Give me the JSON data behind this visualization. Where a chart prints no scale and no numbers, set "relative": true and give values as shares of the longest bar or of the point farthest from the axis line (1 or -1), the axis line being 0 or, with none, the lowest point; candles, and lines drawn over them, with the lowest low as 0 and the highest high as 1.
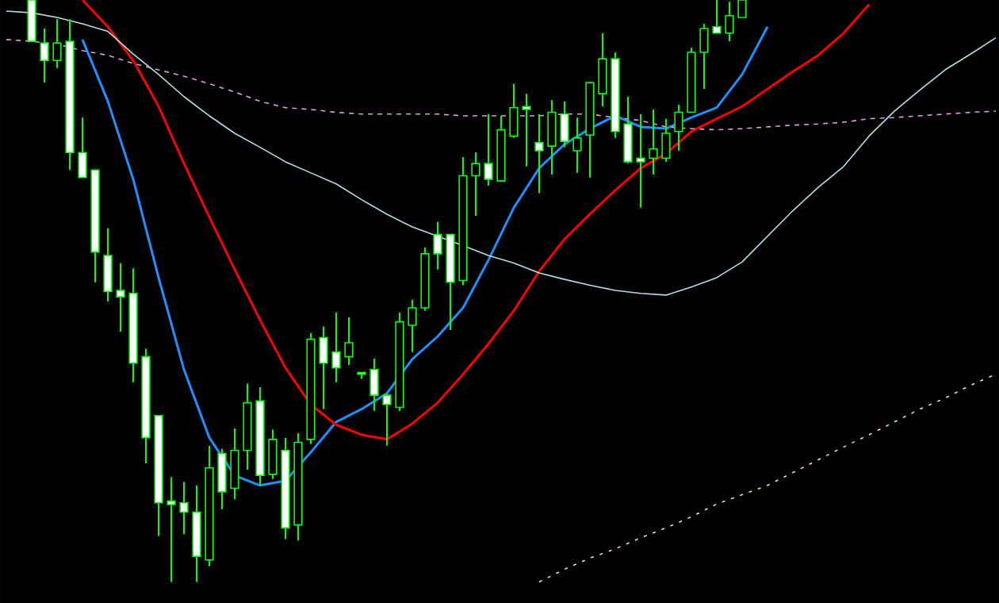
{
  "chart_data": [
    {
      "type": "candlestick",
      "relative": true,
      "color": "#00ff00",
      "categories": [
        null,
        null,
        null,
        null,
        null,
        null,
        null,
        null,
        null,
        null,
        null,
        null,
        null,
        null,
        null,
        null,
        null,
        null,
        null,
        null,
        null,
        null,
        null,
        null,
        null,
        null,
        null,
        null,
        null,
        null,
        null,
        null,
        null,
        null,
        null,
        null,
        null,
        null,
        null,
        null,
        null,
        null,
        null,
        null,
        null,
        null,
        null,
        null,
        null,
        null,
        null,
        null,
        null,
        null,
        null,
        null,
        null
      ],
      "ohlc": [
        [
          1.0,
          1.0,
          0.929,
          0.929
        ],
        [
          0.926,
          0.951,
          0.858,
          0.896
        ],
        [
          0.896,
          0.967,
          0.883,
          0.926
        ],
        [
          0.929,
          0.967,
          0.708,
          0.738
        ],
        [
          0.738,
          0.798,
          0.695,
          0.695
        ],
        [
          0.708,
          0.708,
          0.515,
          0.567
        ],
        [
          0.561,
          0.608,
          0.482,
          0.499
        ],
        [
          0.501,
          0.548,
          0.43,
          0.49
        ],
        [
          0.496,
          0.539,
          0.343,
          0.376
        ],
        [
          0.387,
          0.401,
          0.204,
          0.248
        ],
        [
          0.286,
          0.286,
          0.079,
          0.136
        ],
        [
          0.139,
          0.18,
          0.0,
          0.133
        ],
        [
          0.136,
          0.172,
          0.082,
          0.12
        ],
        [
          0.12,
          0.166,
          0.0,
          0.044
        ],
        [
          0.038,
          0.234,
          0.027,
          0.196
        ],
        [
          0.221,
          0.229,
          0.125,
          0.155
        ],
        [
          0.161,
          0.264,
          0.142,
          0.226
        ],
        [
          0.226,
          0.341,
          0.193,
          0.308
        ],
        [
          0.311,
          0.335,
          0.166,
          0.183
        ],
        [
          0.185,
          0.262,
          0.177,
          0.245
        ],
        [
          0.226,
          0.248,
          0.074,
          0.093
        ],
        [
          0.098,
          0.256,
          0.071,
          0.24
        ],
        [
          0.245,
          0.428,
          0.237,
          0.417
        ],
        [
          0.42,
          0.439,
          0.297,
          0.376
        ],
        [
          0.395,
          0.463,
          0.343,
          0.368
        ],
        [
          0.387,
          0.455,
          0.373,
          0.411
        ],
        [
          0.36,
          0.36,
          0.349,
          0.357
        ],
        [
          0.365,
          0.384,
          0.294,
          0.321
        ],
        [
          0.321,
          0.324,
          0.234,
          0.305
        ],
        [
          0.3,
          0.463,
          0.294,
          0.447
        ],
        [
          0.441,
          0.485,
          0.395,
          0.471
        ],
        [
          0.471,
          0.575,
          0.466,
          0.564
        ],
        [
          0.597,
          0.619,
          0.537,
          0.564
        ],
        [
          0.597,
          0.597,
          0.433,
          0.515
        ],
        [
          0.518,
          0.73,
          0.51,
          0.698
        ],
        [
          0.698,
          0.738,
          0.629,
          0.719
        ],
        [
          0.719,
          0.804,
          0.681,
          0.692
        ],
        [
          0.689,
          0.801,
          0.689,
          0.777
        ],
        [
          0.766,
          0.856,
          0.763,
          0.815
        ],
        [
          0.817,
          0.839,
          0.714,
          0.812
        ],
        [
          0.755,
          0.804,
          0.668,
          0.741
        ],
        [
          0.749,
          0.828,
          0.7,
          0.807
        ],
        [
          0.804,
          0.826,
          0.747,
          0.757
        ],
        [
          0.741,
          0.798,
          0.703,
          0.763
        ],
        [
          0.768,
          0.858,
          0.695,
          0.858
        ],
        [
          0.839,
          0.943,
          0.817,
          0.899
        ],
        [
          0.899,
          0.91,
          0.763,
          0.774
        ],
        [
          0.787,
          0.834,
          0.719,
          0.722
        ],
        [
          0.728,
          0.804,
          0.643,
          0.722
        ],
        [
          0.728,
          0.812,
          0.7,
          0.744
        ],
        [
          0.728,
          0.796,
          0.722,
          0.771
        ],
        [
          0.774,
          0.82,
          0.741,
          0.807
        ],
        [
          0.807,
          0.918,
          0.807,
          0.91
        ],
        [
          0.91,
          0.959,
          0.847,
          0.951
        ],
        [
          0.954,
          1.0,
          0.943,
          0.943
        ],
        [
          0.943,
          0.997,
          0.929,
          0.973
        ],
        [
          0.97,
          1.0,
          0.97,
          1.0
        ]
      ]
    },
    {
      "type": "line",
      "relative": true,
      "categories": [
        null,
        null,
        null,
        null,
        null,
        null,
        null,
        null,
        null,
        null,
        null,
        null,
        null,
        null,
        null,
        null,
        null,
        null,
        null,
        null,
        null,
        null,
        null,
        null,
        null,
        null,
        null,
        null,
        null,
        null,
        null,
        null,
        null,
        null,
        null,
        null,
        null,
        null,
        null,
        null
      ],
      "series": [
        {
          "color": "#1e90ff",
          "values": [
            null,
            null,
            null,
            0.932,
            0.826,
            0.692,
            0.523,
            0.365,
            0.248,
            0.183,
            0.166,
            0.174,
            0.223,
            0.275,
            0.297,
            0.324,
            0.383,
            0.422,
            0.471,
            0.553,
            0.643,
            0.711,
            0.752,
            0.779,
            0.801,
            0.782,
            0.779,
            0.798,
            0.815,
            0.872,
            0.954,
            null,
            null,
            null,
            null,
            null,
            null,
            null,
            null,
            null
          ]
        },
        {
          "color": "#ff0000",
          "values": [
            null,
            null,
            null,
            1.0,
            0.954,
            0.896,
            0.817,
            0.719,
            0.627,
            0.537,
            0.45,
            0.368,
            0.305,
            0.27,
            0.253,
            0.245,
            0.272,
            0.308,
            0.357,
            0.409,
            0.466,
            0.534,
            0.589,
            0.632,
            0.673,
            0.711,
            0.736,
            0.774,
            0.796,
            0.817,
            0.847,
            0.877,
            0.905,
            0.943,
            0.992,
            null,
            null,
            null,
            null,
            null
          ]
        },
        {
          "color": "#b0e0e6",
          "values": [
            0.981,
            0.978,
            0.97,
            0.959,
            0.946,
            0.907,
            0.872,
            0.834,
            0.801,
            0.771,
            0.747,
            0.722,
            0.703,
            0.684,
            0.657,
            0.632,
            0.61,
            0.594,
            0.578,
            0.561,
            0.548,
            0.531,
            0.52,
            0.51,
            0.501,
            0.496,
            0.493,
            0.507,
            0.523,
            0.55,
            0.594,
            0.638,
            0.678,
            0.714,
            0.766,
            0.809,
            0.845,
            0.88,
            0.907,
            0.935
          ]
        },
        {
          "color": "#dda0dd",
          "line_style": "dashed",
          "values": [
            0.932,
            0.929,
            0.924,
            0.913,
            0.905,
            0.891,
            0.88,
            0.869,
            0.856,
            0.842,
            0.826,
            0.815,
            0.812,
            0.807,
            0.804,
            0.804,
            0.804,
            0.804,
            0.801,
            0.801,
            0.801,
            0.801,
            0.804,
            0.804,
            0.798,
            0.793,
            0.782,
            0.779,
            0.777,
            0.779,
            0.782,
            0.785,
            0.787,
            0.79,
            0.796,
            0.798,
            0.801,
            0.804,
            0.807,
            0.809
          ]
        },
        {
          "color": "#f5deb3",
          "line_style": "dotted",
          "values": [
            null,
            null,
            null,
            null,
            null,
            null,
            null,
            null,
            null,
            null,
            null,
            null,
            null,
            null,
            null,
            null,
            null,
            null,
            null,
            null,
            null,
            0.0,
            0.022,
            0.041,
            0.057,
            0.076,
            0.093,
            0.112,
            0.134,
            0.15,
            0.166,
            0.188,
            0.21,
            0.232,
            0.253,
            0.275,
            0.297,
            0.316,
            0.338,
            0.357
          ]
        }
      ]
    }
  ]
}
